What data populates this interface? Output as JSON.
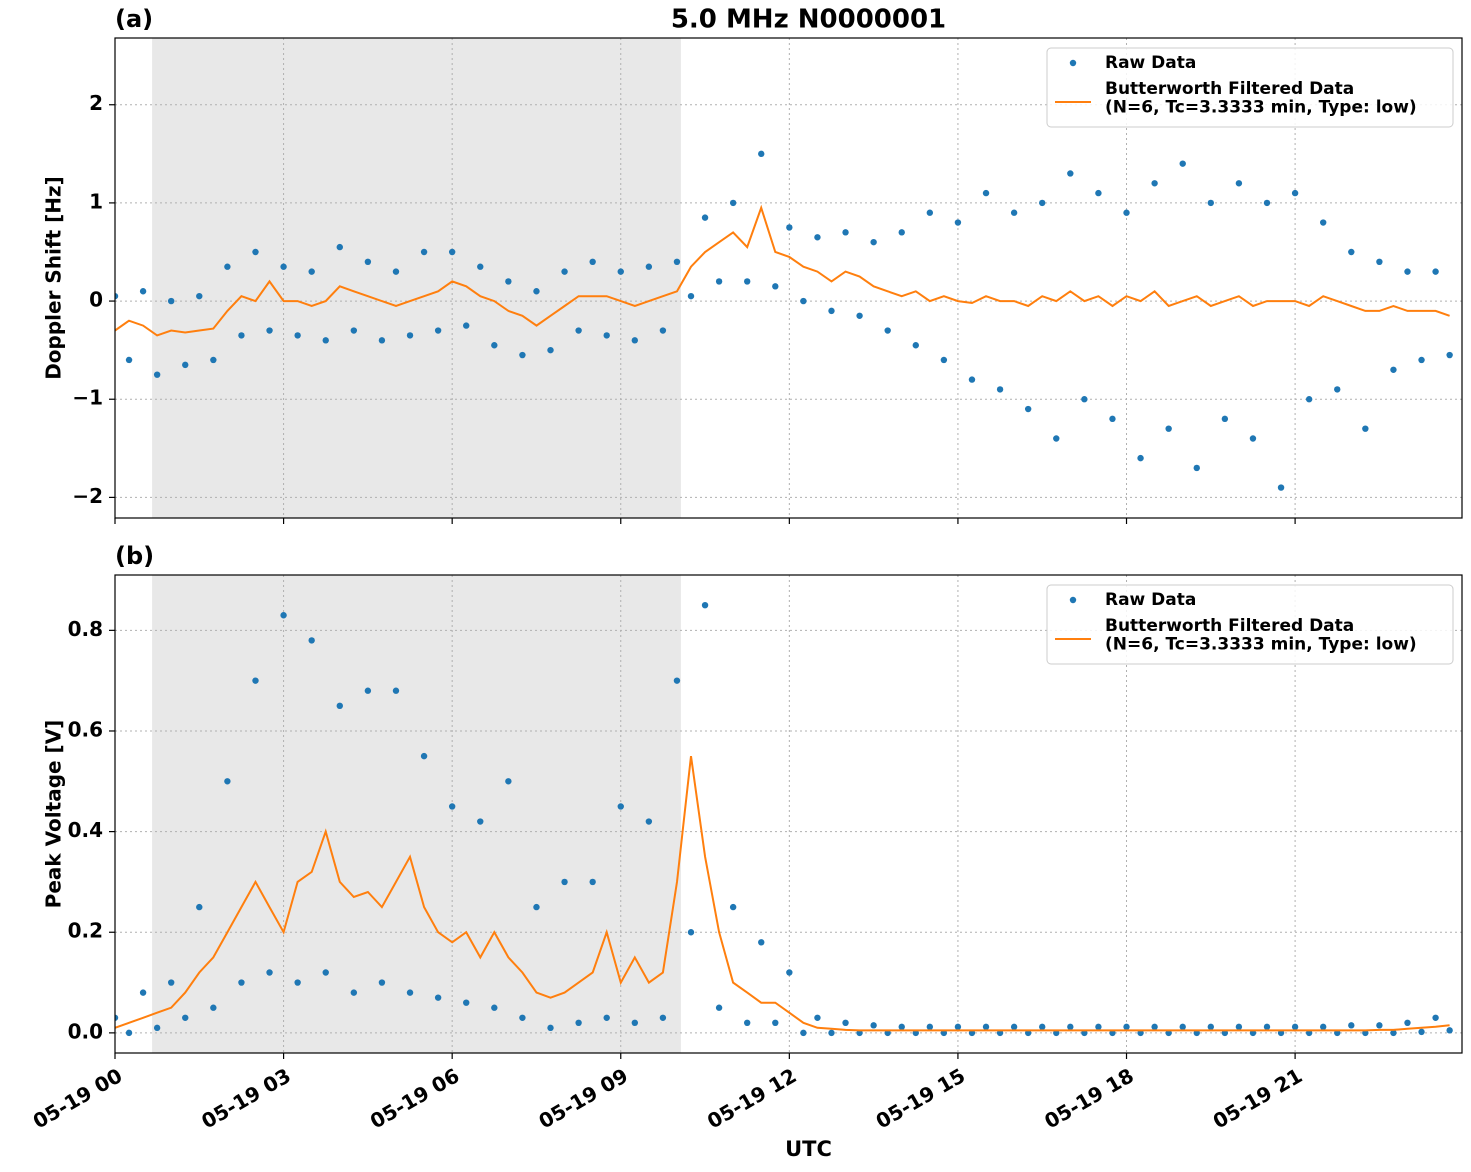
{
  "chart_data": [
    {
      "type": "line",
      "title": "5.0 MHz N0000001",
      "panel_label": "(a)",
      "ylabel": "Doppler Shift [Hz]",
      "xlim": [
        0,
        23.97
      ],
      "xticks": [
        0,
        3,
        6,
        9,
        12,
        15,
        18,
        21
      ],
      "xtick_labels": false,
      "ylim": [
        -2.21,
        2.68
      ],
      "yticks": [
        {
          "value": -2,
          "label": "−2"
        },
        {
          "value": -1,
          "label": "−1"
        },
        0,
        1,
        2
      ],
      "grid": true,
      "legend": "upper right",
      "shaded_span": [
        0.66,
        10.07
      ],
      "shade_color": "#e8e8e8",
      "x": [
        0,
        0.25,
        0.5,
        0.75,
        1,
        1.25,
        1.5,
        1.75,
        2,
        2.25,
        2.5,
        2.75,
        3,
        3.25,
        3.5,
        3.75,
        4,
        4.25,
        4.5,
        4.75,
        5,
        5.25,
        5.5,
        5.75,
        6,
        6.25,
        6.5,
        6.75,
        7,
        7.25,
        7.5,
        7.75,
        8,
        8.25,
        8.5,
        8.75,
        9,
        9.25,
        9.5,
        9.75,
        10,
        10.25,
        10.5,
        10.75,
        11,
        11.25,
        11.5,
        11.75,
        12,
        12.25,
        12.5,
        12.75,
        13,
        13.25,
        13.5,
        13.75,
        14,
        14.25,
        14.5,
        14.75,
        15,
        15.25,
        15.5,
        15.75,
        16,
        16.25,
        16.5,
        16.75,
        17,
        17.25,
        17.5,
        17.75,
        18,
        18.25,
        18.5,
        18.75,
        19,
        19.25,
        19.5,
        19.75,
        20,
        20.25,
        20.5,
        20.75,
        21,
        21.25,
        21.5,
        21.75,
        22,
        22.25,
        22.5,
        22.75,
        23,
        23.25,
        23.5,
        23.75
      ],
      "series": [
        {
          "name": "Raw Data",
          "color": "#1f77b4",
          "style": "dots",
          "values": [
            0.05,
            -0.6,
            0.1,
            -0.75,
            0.0,
            -0.65,
            0.05,
            -0.6,
            0.35,
            -0.35,
            0.5,
            -0.3,
            0.35,
            -0.35,
            0.3,
            -0.4,
            0.55,
            -0.3,
            0.4,
            -0.4,
            0.3,
            -0.35,
            0.5,
            -0.3,
            0.5,
            -0.25,
            0.35,
            -0.45,
            0.2,
            -0.55,
            0.1,
            -0.5,
            0.3,
            -0.3,
            0.4,
            -0.35,
            0.3,
            -0.4,
            0.35,
            -0.3,
            0.4,
            0.05,
            0.85,
            0.2,
            1.0,
            0.2,
            1.5,
            0.15,
            0.75,
            0.0,
            0.65,
            -0.1,
            0.7,
            -0.15,
            0.6,
            -0.3,
            0.7,
            -0.45,
            0.9,
            -0.6,
            0.8,
            -0.8,
            1.1,
            -0.9,
            0.9,
            -1.1,
            1.0,
            -1.4,
            1.3,
            -1.0,
            1.1,
            -1.2,
            0.9,
            -1.6,
            1.2,
            -1.3,
            1.4,
            -1.7,
            1.0,
            -1.2,
            1.2,
            -1.4,
            1.0,
            -1.9,
            1.1,
            -1.0,
            0.8,
            -0.9,
            0.5,
            -1.3,
            0.4,
            -0.7,
            0.3,
            -0.6,
            0.3,
            -0.55
          ]
        },
        {
          "name": "Butterworth Filtered Data\n(N=6, Tc=3.3333 min, Type: low)",
          "color": "#ff7f0e",
          "style": "line",
          "values": [
            -0.3,
            -0.2,
            -0.25,
            -0.35,
            -0.3,
            -0.32,
            -0.3,
            -0.28,
            -0.1,
            0.05,
            0.0,
            0.2,
            0.0,
            0.0,
            -0.05,
            0.0,
            0.15,
            0.1,
            0.05,
            0.0,
            -0.05,
            0.0,
            0.05,
            0.1,
            0.2,
            0.15,
            0.05,
            0.0,
            -0.1,
            -0.15,
            -0.25,
            -0.15,
            -0.05,
            0.05,
            0.05,
            0.05,
            0.0,
            -0.05,
            0.0,
            0.05,
            0.1,
            0.35,
            0.5,
            0.6,
            0.7,
            0.55,
            0.95,
            0.5,
            0.45,
            0.35,
            0.3,
            0.2,
            0.3,
            0.25,
            0.15,
            0.1,
            0.05,
            0.1,
            0.0,
            0.05,
            0.0,
            -0.02,
            0.05,
            0.0,
            0.0,
            -0.05,
            0.05,
            0.0,
            0.1,
            0.0,
            0.05,
            -0.05,
            0.05,
            0.0,
            0.1,
            -0.05,
            0.0,
            0.05,
            -0.05,
            0.0,
            0.05,
            -0.05,
            0.0,
            0.0,
            0.0,
            -0.05,
            0.05,
            0.0,
            -0.05,
            -0.1,
            -0.1,
            -0.05,
            -0.1,
            -0.1,
            -0.1,
            -0.15
          ]
        }
      ]
    },
    {
      "type": "line",
      "panel_label": "(b)",
      "ylabel": "Peak Voltage [V]",
      "xlabel": "UTC",
      "xlim": [
        0,
        23.97
      ],
      "xticks": [
        {
          "value": 0,
          "label": "05-19 00"
        },
        {
          "value": 3,
          "label": "05-19 03"
        },
        {
          "value": 6,
          "label": "05-19 06"
        },
        {
          "value": 9,
          "label": "05-19 09"
        },
        {
          "value": 12,
          "label": "05-19 12"
        },
        {
          "value": 15,
          "label": "05-19 15"
        },
        {
          "value": 18,
          "label": "05-19 18"
        },
        {
          "value": 21,
          "label": "05-19 21"
        }
      ],
      "xtick_labels": true,
      "ylim": [
        -0.04,
        0.91
      ],
      "yticks": [
        {
          "value": 0,
          "label": "0.0"
        },
        0.2,
        0.4,
        0.6,
        0.8
      ],
      "grid": true,
      "legend": "upper right",
      "shaded_span": [
        0.66,
        10.07
      ],
      "shade_color": "#e8e8e8",
      "x": [
        0,
        0.25,
        0.5,
        0.75,
        1,
        1.25,
        1.5,
        1.75,
        2,
        2.25,
        2.5,
        2.75,
        3,
        3.25,
        3.5,
        3.75,
        4,
        4.25,
        4.5,
        4.75,
        5,
        5.25,
        5.5,
        5.75,
        6,
        6.25,
        6.5,
        6.75,
        7,
        7.25,
        7.5,
        7.75,
        8,
        8.25,
        8.5,
        8.75,
        9,
        9.25,
        9.5,
        9.75,
        10,
        10.25,
        10.5,
        10.75,
        11,
        11.25,
        11.5,
        11.75,
        12,
        12.25,
        12.5,
        12.75,
        13,
        13.25,
        13.5,
        13.75,
        14,
        14.25,
        14.5,
        14.75,
        15,
        15.25,
        15.5,
        15.75,
        16,
        16.25,
        16.5,
        16.75,
        17,
        17.25,
        17.5,
        17.75,
        18,
        18.25,
        18.5,
        18.75,
        19,
        19.25,
        19.5,
        19.75,
        20,
        20.25,
        20.5,
        20.75,
        21,
        21.25,
        21.5,
        21.75,
        22,
        22.25,
        22.5,
        22.75,
        23,
        23.25,
        23.5,
        23.75
      ],
      "series": [
        {
          "name": "Raw Data",
          "color": "#1f77b4",
          "style": "dots",
          "values": [
            0.03,
            0.0,
            0.08,
            0.01,
            0.1,
            0.03,
            0.25,
            0.05,
            0.5,
            0.1,
            0.7,
            0.12,
            0.83,
            0.1,
            0.78,
            0.12,
            0.65,
            0.08,
            0.68,
            0.1,
            0.68,
            0.08,
            0.55,
            0.07,
            0.45,
            0.06,
            0.42,
            0.05,
            0.5,
            0.03,
            0.25,
            0.01,
            0.3,
            0.02,
            0.3,
            0.03,
            0.45,
            0.02,
            0.42,
            0.03,
            0.7,
            0.2,
            0.85,
            0.05,
            0.25,
            0.02,
            0.18,
            0.02,
            0.12,
            0.0,
            0.03,
            0.0,
            0.02,
            0.0,
            0.015,
            0.0,
            0.012,
            0.0,
            0.012,
            0.0,
            0.012,
            0.0,
            0.012,
            0.0,
            0.012,
            0.0,
            0.012,
            0.0,
            0.012,
            0.0,
            0.012,
            0.0,
            0.012,
            0.0,
            0.012,
            0.0,
            0.012,
            0.0,
            0.012,
            0.0,
            0.012,
            0.0,
            0.012,
            0.0,
            0.012,
            0.0,
            0.012,
            0.0,
            0.015,
            0.0,
            0.015,
            0.0,
            0.02,
            0.002,
            0.03,
            0.005
          ]
        },
        {
          "name": "Butterworth Filtered Data\n(N=6, Tc=3.3333 min, Type: low)",
          "color": "#ff7f0e",
          "style": "line",
          "values": [
            0.01,
            0.02,
            0.03,
            0.04,
            0.05,
            0.08,
            0.12,
            0.15,
            0.2,
            0.25,
            0.3,
            0.25,
            0.2,
            0.3,
            0.32,
            0.4,
            0.3,
            0.27,
            0.28,
            0.25,
            0.3,
            0.35,
            0.25,
            0.2,
            0.18,
            0.2,
            0.15,
            0.2,
            0.15,
            0.12,
            0.08,
            0.07,
            0.08,
            0.1,
            0.12,
            0.2,
            0.1,
            0.15,
            0.1,
            0.12,
            0.3,
            0.55,
            0.35,
            0.2,
            0.1,
            0.08,
            0.06,
            0.06,
            0.04,
            0.02,
            0.01,
            0.008,
            0.006,
            0.005,
            0.005,
            0.005,
            0.005,
            0.005,
            0.005,
            0.005,
            0.005,
            0.005,
            0.005,
            0.005,
            0.005,
            0.005,
            0.005,
            0.005,
            0.005,
            0.005,
            0.005,
            0.005,
            0.005,
            0.005,
            0.005,
            0.005,
            0.005,
            0.005,
            0.005,
            0.005,
            0.005,
            0.005,
            0.005,
            0.005,
            0.005,
            0.005,
            0.005,
            0.005,
            0.005,
            0.005,
            0.006,
            0.006,
            0.008,
            0.01,
            0.012,
            0.015
          ]
        }
      ]
    }
  ]
}
